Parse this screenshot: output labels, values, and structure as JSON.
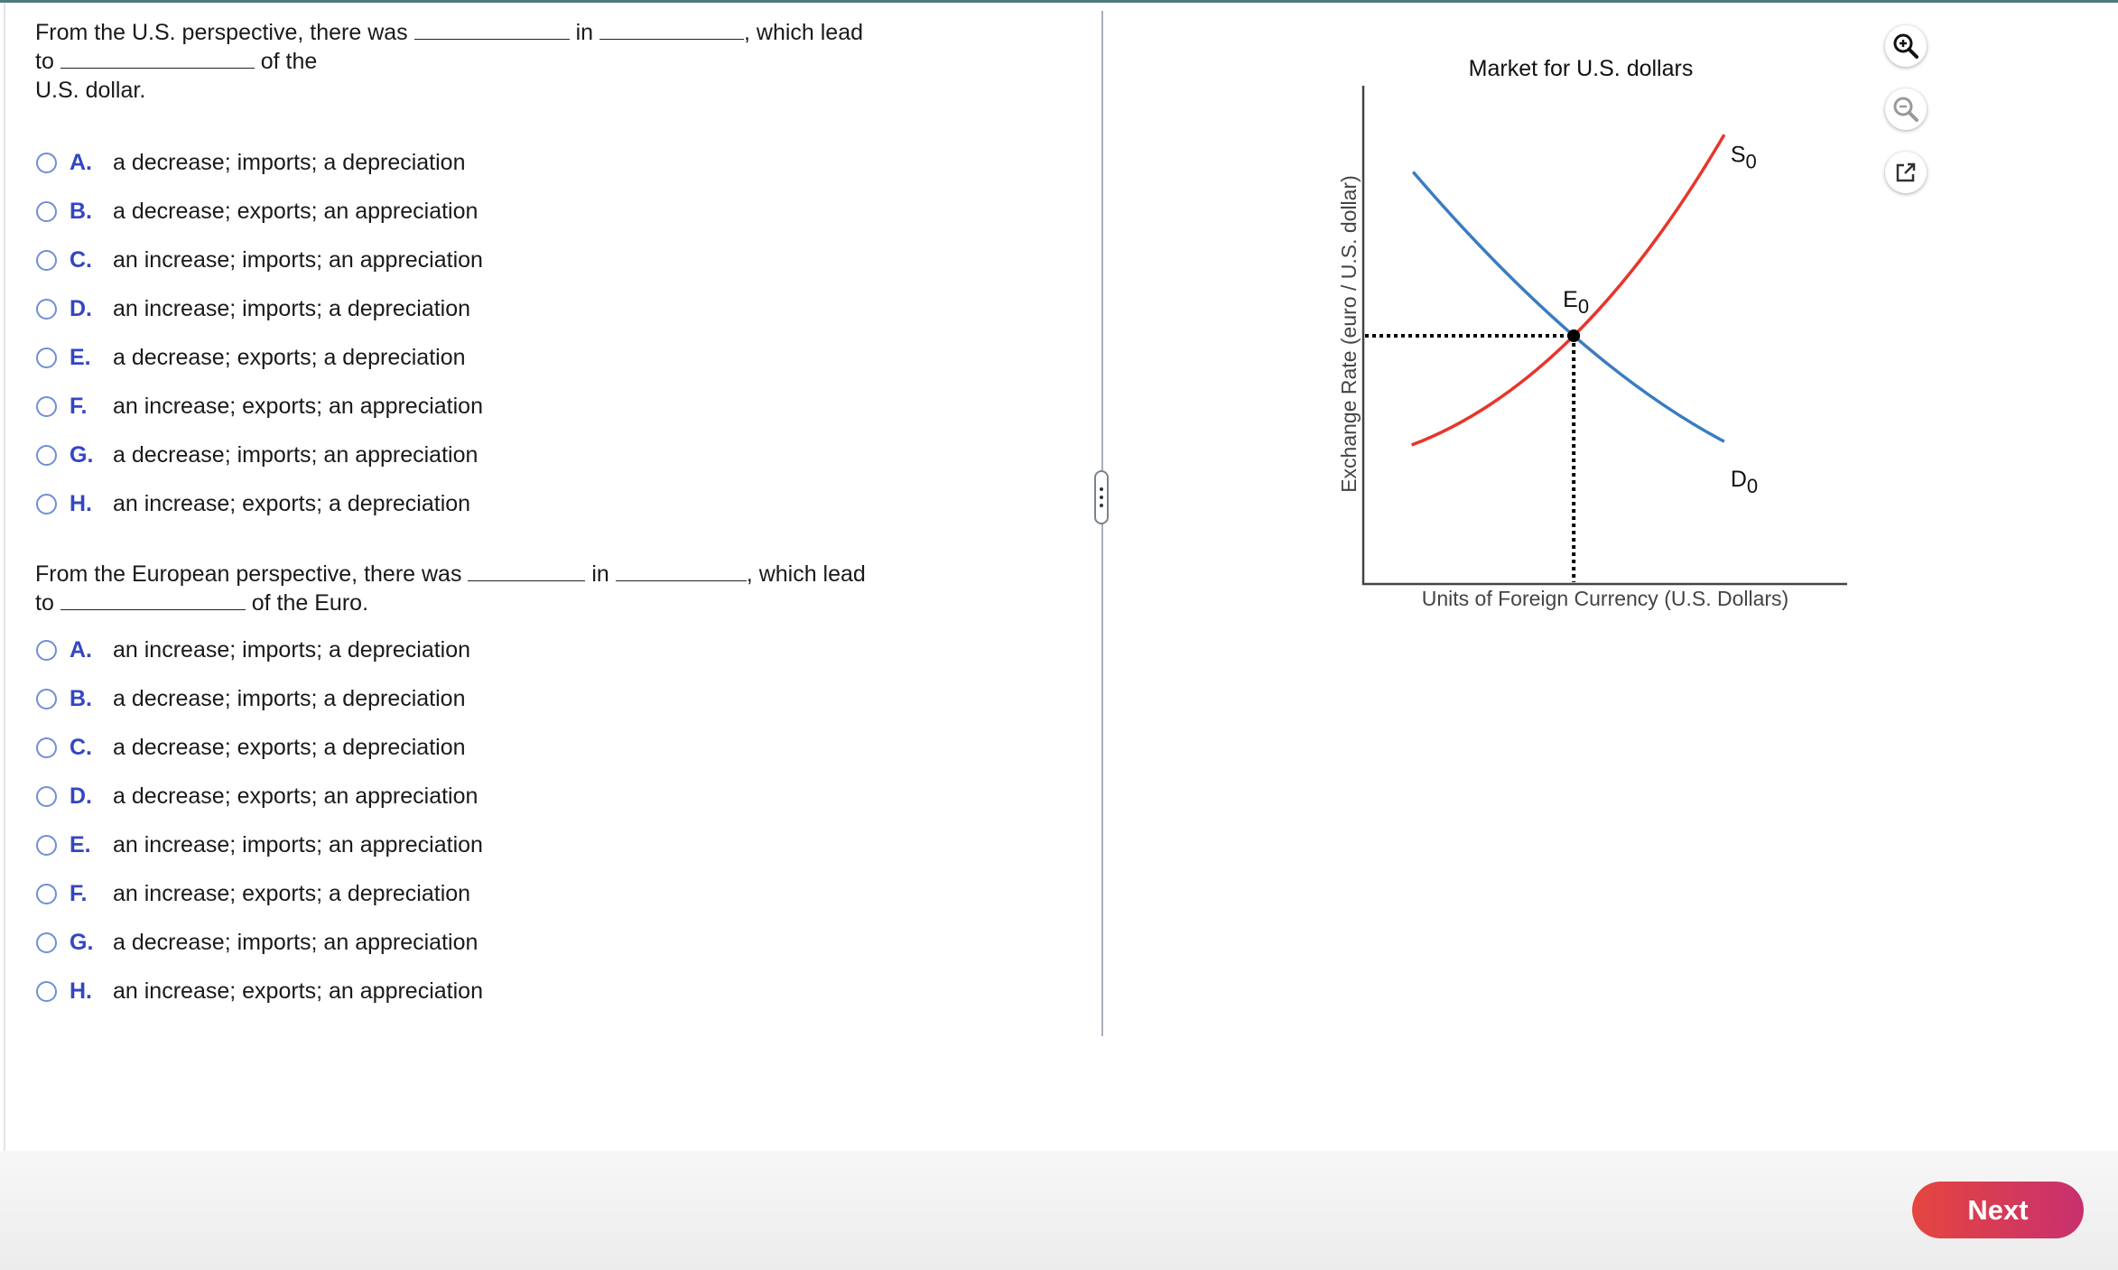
{
  "question1": {
    "part1": "From the U.S. perspective, there was",
    "part2": "in",
    "part3": ", which lead",
    "part4": "to",
    "part5": "of the",
    "part6": "U.S. dollar.",
    "options": [
      {
        "letter": "A.",
        "text": "a decrease; imports; a depreciation"
      },
      {
        "letter": "B.",
        "text": "a decrease; exports; an appreciation"
      },
      {
        "letter": "C.",
        "text": "an increase; imports; an appreciation"
      },
      {
        "letter": "D.",
        "text": "an increase; imports; a depreciation"
      },
      {
        "letter": "E.",
        "text": "a decrease; exports; a depreciation"
      },
      {
        "letter": "F.",
        "text": "an increase; exports; an appreciation"
      },
      {
        "letter": "G.",
        "text": "a decrease; imports; an appreciation"
      },
      {
        "letter": "H.",
        "text": "an increase; exports; a depreciation"
      }
    ]
  },
  "question2": {
    "part1": "From the European perspective, there was",
    "part2": "in",
    "part3": ", which lead",
    "part4": "to",
    "part5": "of the Euro.",
    "options": [
      {
        "letter": "A.",
        "text": "an increase; imports; a depreciation"
      },
      {
        "letter": "B.",
        "text": "a decrease; imports; a depreciation"
      },
      {
        "letter": "C.",
        "text": "a decrease; exports; a depreciation"
      },
      {
        "letter": "D.",
        "text": "a decrease; exports; an appreciation"
      },
      {
        "letter": "E.",
        "text": "an increase; imports; an appreciation"
      },
      {
        "letter": "F.",
        "text": "an increase; exports; a depreciation"
      },
      {
        "letter": "G.",
        "text": "a decrease; imports; an appreciation"
      },
      {
        "letter": "H.",
        "text": "an increase; exports; an appreciation"
      }
    ]
  },
  "chart_data": {
    "type": "line",
    "title": "Market for U.S. dollars",
    "xlabel": "Units of Foreign Currency (U.S. Dollars)",
    "ylabel": "Exchange Rate (euro / U.S. dollar)",
    "grid": false,
    "series": [
      {
        "name": "S0",
        "label_main": "S",
        "label_sub": "0",
        "color": "#e8352a",
        "points": [
          [
            1.0,
            2.8
          ],
          [
            4.35,
            5.0
          ],
          [
            7.46,
            9.05
          ]
        ]
      },
      {
        "name": "D0",
        "label_main": "D",
        "label_sub": "0",
        "color": "#3a7cc0",
        "points": [
          [
            1.03,
            8.3
          ],
          [
            4.35,
            5.0
          ],
          [
            7.46,
            2.87
          ]
        ]
      }
    ],
    "equilibrium": {
      "label_main": "E",
      "label_sub": "0",
      "x": 4.35,
      "y": 5.0
    }
  },
  "tools": {
    "zoom_in": "zoom-in-icon",
    "zoom_out": "zoom-out-icon",
    "open_new": "external-link-icon"
  },
  "footer": {
    "next_label": "Next"
  }
}
